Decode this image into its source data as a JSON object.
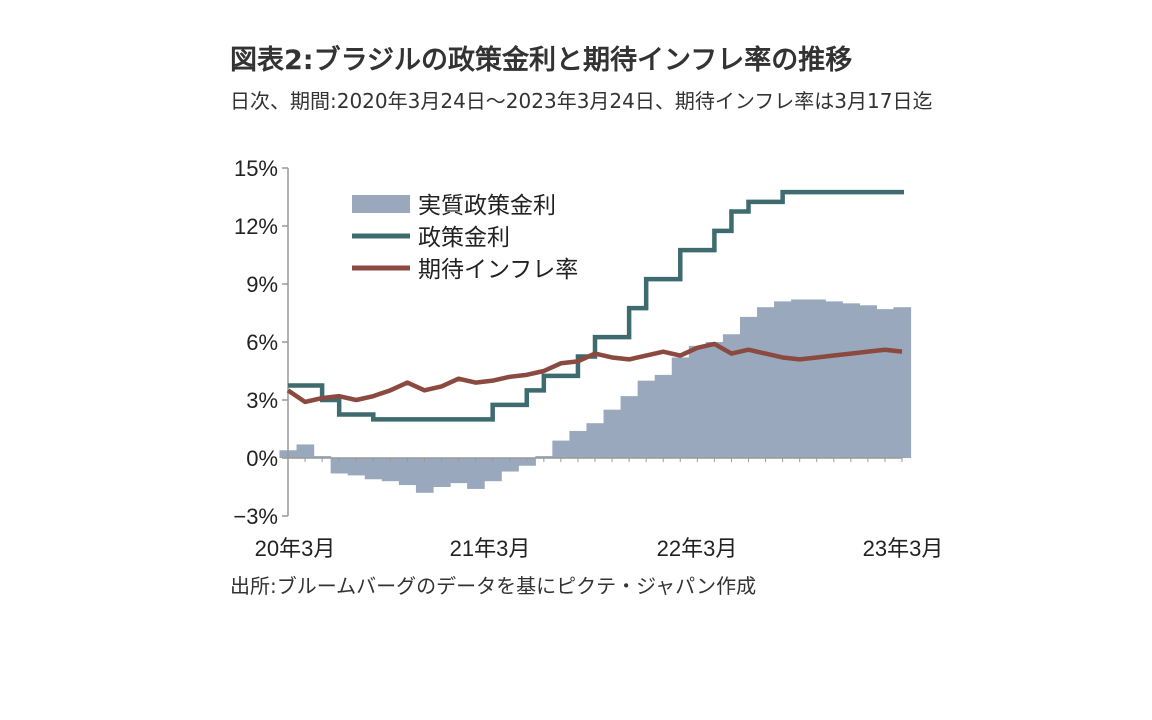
{
  "chart_data": {
    "type": "line",
    "title": "図表2:ブラジルの政策金利と期待インフレ率の推移",
    "subtitle": "日次、期間:2020年3月24日～2023年3月24日、期待インフレ率は3月17日迄",
    "source": "出所:ブルームバーグのデータを基にピクテ・ジャパン作成",
    "y_ticks": [
      "15%",
      "12%",
      "9%",
      "6%",
      "3%",
      "0%",
      "−3%"
    ],
    "x_ticks": [
      "20年3月",
      "21年3月",
      "22年3月",
      "23年3月"
    ],
    "x_range": [
      "2020-03",
      "2023-03"
    ],
    "ylim": [
      -3,
      15
    ],
    "grid": false,
    "legend_position": "top-left",
    "series": [
      {
        "name": "実質政策金利",
        "kind": "area",
        "color": "#9aa8bd",
        "x": [
          "2020-03",
          "2020-04",
          "2020-05",
          "2020-06",
          "2020-07",
          "2020-08",
          "2020-09",
          "2020-10",
          "2020-11",
          "2020-12",
          "2021-01",
          "2021-02",
          "2021-03",
          "2021-04",
          "2021-05",
          "2021-06",
          "2021-07",
          "2021-08",
          "2021-09",
          "2021-10",
          "2021-11",
          "2021-12",
          "2022-01",
          "2022-02",
          "2022-03",
          "2022-04",
          "2022-05",
          "2022-06",
          "2022-07",
          "2022-08",
          "2022-09",
          "2022-10",
          "2022-11",
          "2022-12",
          "2023-01",
          "2023-02",
          "2023-03"
        ],
        "values": [
          0.4,
          0.7,
          0.1,
          -0.8,
          -0.9,
          -1.1,
          -1.2,
          -1.4,
          -1.8,
          -1.5,
          -1.3,
          -1.6,
          -1.2,
          -0.7,
          -0.4,
          0.1,
          0.9,
          1.4,
          1.8,
          2.5,
          3.2,
          4.0,
          4.3,
          5.2,
          5.8,
          6.0,
          6.4,
          7.3,
          7.8,
          8.1,
          8.2,
          8.2,
          8.1,
          8.0,
          7.9,
          7.7,
          7.8
        ]
      },
      {
        "name": "政策金利",
        "kind": "line",
        "color": "#3d6b6f",
        "x": [
          "2020-03",
          "2020-04",
          "2020-05",
          "2020-06",
          "2020-07",
          "2020-08",
          "2020-09",
          "2020-10",
          "2020-11",
          "2020-12",
          "2021-01",
          "2021-02",
          "2021-03",
          "2021-04",
          "2021-05",
          "2021-06",
          "2021-07",
          "2021-08",
          "2021-09",
          "2021-10",
          "2021-11",
          "2021-12",
          "2022-01",
          "2022-02",
          "2022-03",
          "2022-04",
          "2022-05",
          "2022-06",
          "2022-07",
          "2022-08",
          "2022-09",
          "2022-10",
          "2022-11",
          "2022-12",
          "2023-01",
          "2023-02",
          "2023-03"
        ],
        "values": [
          3.75,
          3.75,
          3.0,
          2.25,
          2.25,
          2.0,
          2.0,
          2.0,
          2.0,
          2.0,
          2.0,
          2.0,
          2.75,
          2.75,
          3.5,
          4.25,
          4.25,
          5.25,
          6.25,
          6.25,
          7.75,
          9.25,
          9.25,
          10.75,
          10.75,
          11.75,
          12.75,
          13.25,
          13.25,
          13.75,
          13.75,
          13.75,
          13.75,
          13.75,
          13.75,
          13.75,
          13.75
        ]
      },
      {
        "name": "期待インフレ率",
        "kind": "line",
        "color": "#8b4a3f",
        "x": [
          "2020-03",
          "2020-04",
          "2020-05",
          "2020-06",
          "2020-07",
          "2020-08",
          "2020-09",
          "2020-10",
          "2020-11",
          "2020-12",
          "2021-01",
          "2021-02",
          "2021-03",
          "2021-04",
          "2021-05",
          "2021-06",
          "2021-07",
          "2021-08",
          "2021-09",
          "2021-10",
          "2021-11",
          "2021-12",
          "2022-01",
          "2022-02",
          "2022-03",
          "2022-04",
          "2022-05",
          "2022-06",
          "2022-07",
          "2022-08",
          "2022-09",
          "2022-10",
          "2022-11",
          "2022-12",
          "2023-01",
          "2023-02",
          "2023-03"
        ],
        "values": [
          3.5,
          2.9,
          3.1,
          3.2,
          3.0,
          3.2,
          3.5,
          3.9,
          3.5,
          3.7,
          4.1,
          3.9,
          4.0,
          4.2,
          4.3,
          4.5,
          4.9,
          5.0,
          5.4,
          5.2,
          5.1,
          5.3,
          5.5,
          5.3,
          5.7,
          5.9,
          5.4,
          5.6,
          5.4,
          5.2,
          5.1,
          5.2,
          5.3,
          5.4,
          5.5,
          5.6,
          5.5
        ]
      }
    ]
  }
}
